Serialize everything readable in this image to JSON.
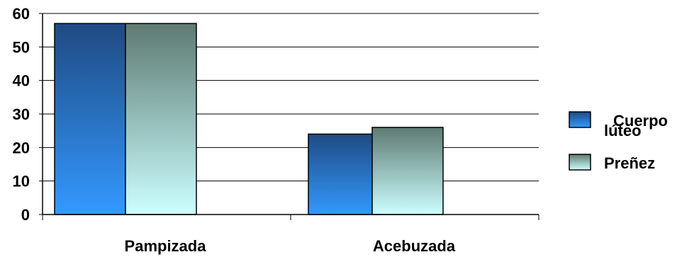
{
  "chart_data": {
    "type": "bar",
    "categories": [
      "Pampizada",
      "Acebuzada"
    ],
    "series": [
      {
        "name": "Cuerpo lúteo",
        "values": [
          57,
          24
        ],
        "gradient": [
          "#1f4a82",
          "#3399ff"
        ]
      },
      {
        "name": "Preñez",
        "values": [
          57,
          26
        ],
        "gradient": [
          "#5e7a72",
          "#ccffff"
        ]
      }
    ],
    "legend_lines": [
      [
        "Cuerpo",
        "lúteo"
      ],
      [
        "Preñez"
      ]
    ],
    "ylim": [
      0,
      60
    ],
    "yticks": [
      "0",
      "10",
      "20",
      "30",
      "40",
      "50",
      "60"
    ],
    "grid": true,
    "legend": "right"
  }
}
